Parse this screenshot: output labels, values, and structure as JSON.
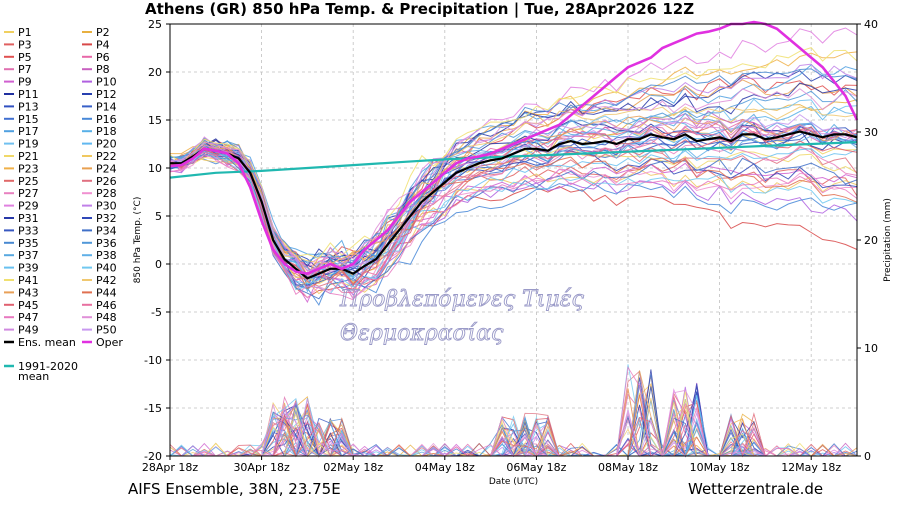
{
  "header": {
    "title": "Athens  (GR)  850 hPa Temp. & Precipitation | Tue, 28Apr2026 12Z"
  },
  "footer": {
    "model": "AIFS Ensemble, 38N, 23.75E",
    "site": "Wetterzentrale.de"
  },
  "watermark": {
    "line1": "Προβλεπόμενες Τιμές",
    "line2": "Θερμοκρασίας"
  },
  "legend": {
    "members": [
      "P1",
      "P2",
      "P3",
      "P4",
      "P5",
      "P6",
      "P7",
      "P8",
      "P9",
      "P10",
      "P11",
      "P12",
      "P13",
      "P14",
      "P15",
      "P16",
      "P17",
      "P18",
      "P19",
      "P20",
      "P21",
      "P22",
      "P23",
      "P24",
      "P25",
      "P26",
      "P27",
      "P28",
      "P29",
      "P30",
      "P31",
      "P32",
      "P33",
      "P34",
      "P35",
      "P36",
      "P37",
      "P38",
      "P39",
      "P40",
      "P41",
      "P42",
      "P43",
      "P44",
      "P45",
      "P46",
      "P47",
      "P48",
      "P49",
      "P50"
    ],
    "member_colors": [
      "#f0d060",
      "#e8b040",
      "#e06060",
      "#d84848",
      "#e05050",
      "#e868a8",
      "#e070b0",
      "#c860c0",
      "#d060d0",
      "#b060e0",
      "#2030a0",
      "#2840b0",
      "#3050c0",
      "#3860c8",
      "#4070d0",
      "#4888d8",
      "#50a0e0",
      "#58b0e8",
      "#70c0f0",
      "#60b8f0",
      "#f0d868",
      "#f0c860",
      "#f0b048",
      "#e8a050",
      "#e06868",
      "#e07080",
      "#e880c0",
      "#f090d0",
      "#e080e0",
      "#c080e8",
      "#2838a8",
      "#3048b8",
      "#3858c0",
      "#4070c8",
      "#4888d0",
      "#5098d8",
      "#58a8e0",
      "#60b0e8",
      "#68c0f0",
      "#70c8f0",
      "#f0e070",
      "#f0c870",
      "#e8a058",
      "#e07050",
      "#e06070",
      "#e870a0",
      "#e878c0",
      "#e090d8",
      "#d088e0",
      "#c898f0"
    ],
    "ens_mean": "Ens. mean",
    "oper": "Oper",
    "climate": "1991-2020\nmean"
  },
  "colors": {
    "ens_mean": "#000000",
    "oper": "#e030e0",
    "climate": "#20b8b0",
    "grid": "#c0c0c0"
  },
  "chart_data": {
    "type": "line",
    "title": "Athens  (GR)  850 hPa Temp. & Precipitation | Tue, 28Apr2026 12Z",
    "xlabel": "Date (UTC)",
    "ylabel": "850 hPa Temp. (°C)",
    "y2label": "Precipitation (mm)",
    "x_ticks": [
      "28Apr 18z",
      "30Apr 18z",
      "02May 18z",
      "04May 18z",
      "06May 18z",
      "08May 18z",
      "10May 18z",
      "12May 18z"
    ],
    "x_range_hours": [
      0,
      360
    ],
    "x_tick_hours": [
      0,
      48,
      96,
      144,
      192,
      240,
      288,
      336
    ],
    "ylim": [
      -20,
      25
    ],
    "y_ticks": [
      25,
      20,
      15,
      10,
      5,
      0,
      -5,
      -10,
      -15,
      -20
    ],
    "y2lim": [
      0,
      40
    ],
    "y2_ticks": [
      40,
      30,
      20,
      10,
      0
    ],
    "grid": true,
    "legend_position": "left-outside",
    "series": [
      {
        "name": "Ens. mean",
        "x": [
          0,
          6,
          12,
          18,
          24,
          30,
          36,
          42,
          48,
          54,
          60,
          66,
          72,
          78,
          84,
          90,
          96,
          102,
          108,
          114,
          120,
          126,
          132,
          138,
          144,
          150,
          156,
          162,
          168,
          174,
          180,
          186,
          192,
          198,
          204,
          210,
          216,
          222,
          228,
          234,
          240,
          246,
          252,
          258,
          264,
          270,
          276,
          282,
          288,
          294,
          300,
          306,
          312,
          318,
          324,
          330,
          336,
          342,
          348,
          354,
          360
        ],
        "values": [
          10.5,
          10.5,
          11.2,
          12,
          11.8,
          11.5,
          11,
          9.5,
          6.5,
          2.5,
          0.5,
          -0.5,
          -1.5,
          -1,
          -0.5,
          -0.5,
          -1,
          -0.2,
          0.5,
          2,
          3.5,
          5,
          6.5,
          7.5,
          8.5,
          9.5,
          10,
          10.5,
          10.8,
          11,
          11.5,
          12,
          12,
          11.8,
          12.5,
          12.8,
          12.5,
          12.6,
          12.8,
          12.5,
          13,
          13,
          13.5,
          13.2,
          13,
          13.5,
          12.8,
          13,
          13.2,
          12.8,
          13.5,
          13.5,
          13,
          13.2,
          13.5,
          13.8,
          13.5,
          13.2,
          13.5,
          13.5,
          13.2
        ]
      },
      {
        "name": "Oper",
        "x": [
          0,
          6,
          12,
          18,
          24,
          30,
          36,
          42,
          48,
          54,
          60,
          66,
          72,
          78,
          84,
          90,
          96,
          102,
          108,
          114,
          120,
          126,
          132,
          138,
          144,
          150,
          156,
          162,
          168,
          174,
          180,
          186,
          192,
          198,
          204,
          210,
          216,
          222,
          228,
          234,
          240,
          246,
          252,
          258,
          264,
          270,
          276,
          282,
          288,
          294,
          300,
          306,
          312,
          318,
          324,
          330,
          336,
          342,
          348,
          354,
          360
        ],
        "values": [
          10.2,
          10.3,
          11,
          12,
          11.8,
          11.5,
          10.5,
          8,
          4.5,
          1.5,
          0,
          -0.8,
          -1,
          -0.5,
          0,
          -0.5,
          0,
          1.5,
          2.5,
          3.5,
          5,
          6.5,
          7.5,
          8.5,
          9.5,
          10.5,
          11,
          11.2,
          11.5,
          12,
          12.5,
          13,
          13.5,
          14,
          14.5,
          15.5,
          16.5,
          17.5,
          18.5,
          19.5,
          20.5,
          21,
          21.5,
          22.5,
          23,
          23.5,
          24,
          24.2,
          24.5,
          25,
          25,
          25.2,
          25,
          24.5,
          23.5,
          22.5,
          21.5,
          20.5,
          19,
          17.5,
          15
        ]
      },
      {
        "name": "1991-2020 mean",
        "x": [
          0,
          24,
          48,
          72,
          96,
          120,
          144,
          168,
          192,
          216,
          240,
          264,
          288,
          312,
          336,
          360
        ],
        "values": [
          9,
          9.5,
          9.7,
          10,
          10.3,
          10.6,
          10.9,
          11.1,
          11.3,
          11.5,
          11.7,
          11.9,
          12.1,
          12.3,
          12.5,
          12.7
        ]
      }
    ],
    "precipitation_note": "Per-member precipitation lines near bottom, peaks around 02May, 06-07May, 09-11May (mm)",
    "precipitation_peaks_mm": [
      {
        "hour": 60,
        "value": 5
      },
      {
        "hour": 66,
        "value": 5.5
      },
      {
        "hour": 84,
        "value": 3.5
      },
      {
        "hour": 180,
        "value": 3.8
      },
      {
        "hour": 192,
        "value": 4
      },
      {
        "hour": 246,
        "value": 8.5
      },
      {
        "hour": 270,
        "value": 7
      },
      {
        "hour": 300,
        "value": 4
      }
    ]
  }
}
